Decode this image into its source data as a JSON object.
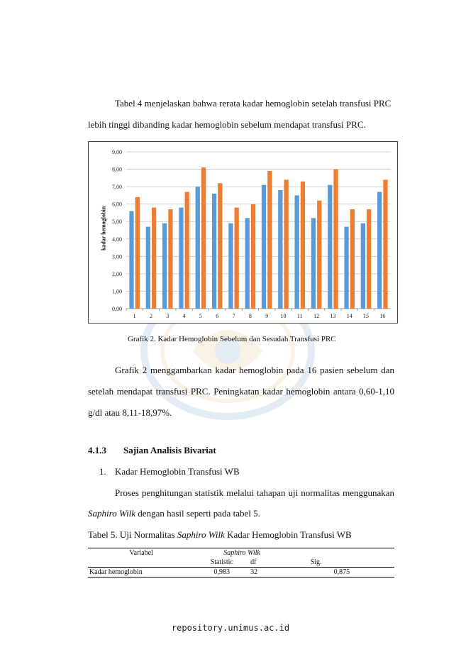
{
  "paragraphs": {
    "p1_line1": "Tabel 4 menjelaskan bahwa rerata kadar hemoglobin setelah transfusi PRC",
    "p1_line2": "lebih tinggi dibanding kadar hemoglobin sebelum mendapat transfusi PRC.",
    "p2_line1": "Grafik 2 menggambarkan kadar hemoglobin pada 16 pasien sebelum dan",
    "p2_line2": "setelah mendapat transfusi PRC. Peningkatan kadar hemoglobin antara 0,60-1,10",
    "p2_line3": "g/dl atau 8,11-18,97%.",
    "p3_line1": "Proses penghitungan statistik melalui tahapan uji normalitas menggunakan",
    "p3_line2_italic": "Saphiro Wilk",
    "p3_line2_rest": " dengan hasil seperti pada tabel 5."
  },
  "figure_caption": "Grafik 2. Kadar Hemoglobin Sebelum dan Sesudah Transfusi PRC",
  "section": {
    "number": "4.1.3",
    "title": "Sajian Analisis Bivariat"
  },
  "list_item": {
    "number": "1.",
    "text": "Kadar Hemoglobin Transfusi WB"
  },
  "table_caption": {
    "prefix": "Tabel 5. Uji Normalitas ",
    "italic": "Saphiro Wilk",
    "suffix": " Kadar Hemoglobin Transfusi WB"
  },
  "table": {
    "header_variable": "Variabel",
    "header_group": "Saphiro Wilk",
    "sub_statistic": "Statistic",
    "sub_df": "df",
    "sub_sig": "Sig.",
    "row_label": "Kadar hemoglobin",
    "row_statistic": "0,983",
    "row_df": "32",
    "row_sig": "0,875"
  },
  "footer": "repository.unimus.ac.id",
  "chart_data": {
    "type": "bar",
    "ylabel": "kadar hemoglobin",
    "ylim": [
      0,
      9
    ],
    "ytick_labels": [
      "0,00",
      "1,00",
      "2,00",
      "3,00",
      "4,00",
      "5,00",
      "6,00",
      "7,00",
      "8,00",
      "9,00"
    ],
    "categories": [
      "1",
      "2",
      "3",
      "4",
      "5",
      "6",
      "7",
      "8",
      "9",
      "10",
      "11",
      "12",
      "13",
      "14",
      "15",
      "16"
    ],
    "grid": "horizontal",
    "series": [
      {
        "values": [
          5.6,
          4.7,
          4.9,
          5.8,
          7.0,
          6.6,
          4.9,
          5.2,
          7.1,
          6.8,
          6.5,
          5.2,
          7.1,
          4.7,
          4.9,
          6.7
        ]
      },
      {
        "values": [
          6.4,
          5.8,
          5.7,
          6.7,
          8.1,
          7.2,
          5.8,
          6.0,
          7.9,
          7.4,
          7.3,
          6.2,
          8.0,
          5.7,
          5.7,
          7.4
        ]
      }
    ],
    "colors": [
      "#5b9bd5",
      "#ed7d31"
    ]
  }
}
